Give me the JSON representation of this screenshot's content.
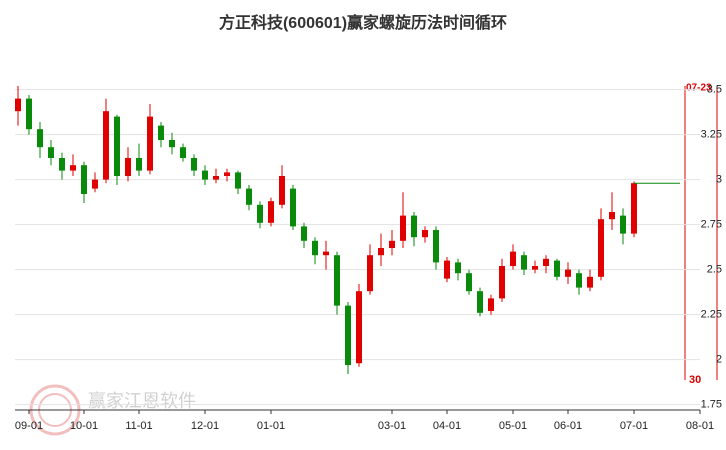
{
  "chart_data": {
    "type": "candlestick",
    "title": "方正科技(600601)赢家螺旋历法时间循环",
    "watermark": "赢家江恩软件",
    "categories": [
      null,
      "09-01",
      null,
      null,
      null,
      null,
      "10-01",
      null,
      null,
      null,
      null,
      "11-01",
      null,
      null,
      null,
      null,
      null,
      "12-01",
      null,
      null,
      null,
      null,
      null,
      "01-01",
      null,
      null,
      null,
      null,
      null,
      null,
      null,
      null,
      null,
      null,
      "03-01",
      null,
      null,
      null,
      null,
      "04-01",
      null,
      null,
      null,
      null,
      null,
      "05-01",
      null,
      null,
      null,
      null,
      "06-01",
      null,
      null,
      null,
      null,
      null,
      "07-01",
      null,
      null,
      null,
      null,
      null,
      "08-01"
    ],
    "open": [
      3.38,
      3.45,
      3.28,
      3.18,
      3.12,
      3.05,
      3.08,
      2.95,
      3.0,
      3.35,
      3.02,
      3.12,
      3.05,
      3.3,
      3.22,
      3.18,
      3.12,
      3.05,
      3.0,
      3.02,
      3.04,
      2.95,
      2.86,
      2.76,
      2.86,
      2.95,
      2.74,
      2.66,
      2.58,
      2.58,
      2.3,
      1.98,
      2.38,
      2.58,
      2.62,
      2.66,
      2.8,
      2.68,
      2.72,
      2.45,
      2.54,
      2.48,
      2.38,
      2.27,
      2.34,
      2.52,
      2.58,
      2.5,
      2.52,
      2.55,
      2.46,
      2.48,
      2.4,
      2.46,
      2.78,
      2.8,
      2.7,
      null,
      null,
      null,
      null,
      null,
      null
    ],
    "high": [
      3.52,
      3.47,
      3.32,
      3.22,
      3.15,
      3.14,
      3.1,
      3.04,
      3.45,
      3.36,
      3.18,
      3.2,
      3.42,
      3.32,
      3.26,
      3.2,
      3.14,
      3.08,
      3.06,
      3.06,
      3.05,
      2.97,
      2.88,
      2.9,
      3.08,
      2.97,
      2.76,
      2.68,
      2.66,
      2.6,
      2.32,
      2.42,
      2.64,
      2.7,
      2.72,
      2.93,
      2.82,
      2.74,
      2.74,
      2.57,
      2.56,
      2.5,
      2.4,
      2.36,
      2.56,
      2.64,
      2.6,
      2.55,
      2.58,
      2.56,
      2.54,
      2.5,
      2.5,
      2.84,
      2.93,
      2.84,
      2.99,
      null,
      null,
      null,
      null,
      null,
      null
    ],
    "low": [
      3.3,
      3.25,
      3.12,
      3.08,
      3.0,
      3.02,
      2.87,
      2.93,
      2.98,
      2.97,
      2.99,
      3.02,
      3.03,
      3.18,
      3.14,
      3.1,
      3.02,
      2.97,
      2.98,
      2.99,
      2.92,
      2.83,
      2.73,
      2.74,
      2.84,
      2.72,
      2.62,
      2.53,
      2.5,
      2.25,
      1.92,
      1.96,
      2.36,
      2.52,
      2.58,
      2.62,
      2.63,
      2.65,
      2.5,
      2.43,
      2.44,
      2.36,
      2.24,
      2.25,
      2.32,
      2.5,
      2.47,
      2.48,
      2.48,
      2.44,
      2.42,
      2.36,
      2.38,
      2.44,
      2.72,
      2.64,
      2.68,
      null,
      null,
      null,
      null,
      null,
      null
    ],
    "close": [
      3.45,
      3.28,
      3.18,
      3.12,
      3.05,
      3.08,
      2.92,
      3.0,
      3.38,
      3.02,
      3.12,
      3.05,
      3.35,
      3.22,
      3.18,
      3.12,
      3.05,
      3.0,
      3.02,
      3.04,
      2.95,
      2.86,
      2.76,
      2.88,
      3.02,
      2.74,
      2.66,
      2.58,
      2.6,
      2.3,
      1.97,
      2.38,
      2.58,
      2.62,
      2.66,
      2.8,
      2.68,
      2.72,
      2.54,
      2.55,
      2.48,
      2.38,
      2.26,
      2.34,
      2.52,
      2.6,
      2.5,
      2.52,
      2.56,
      2.46,
      2.5,
      2.4,
      2.46,
      2.78,
      2.82,
      2.7,
      2.98,
      null,
      null,
      null,
      null,
      null,
      null
    ],
    "up_color": "#e00000",
    "down_color": "#0a8a0a",
    "ylim": [
      1.72,
      3.55
    ],
    "yticks": [
      3.5,
      3.25,
      3,
      2.75,
      2.5,
      2.25,
      2,
      1.75
    ],
    "grid": true,
    "cycle_date": "07-23",
    "cycle_count": "30"
  }
}
